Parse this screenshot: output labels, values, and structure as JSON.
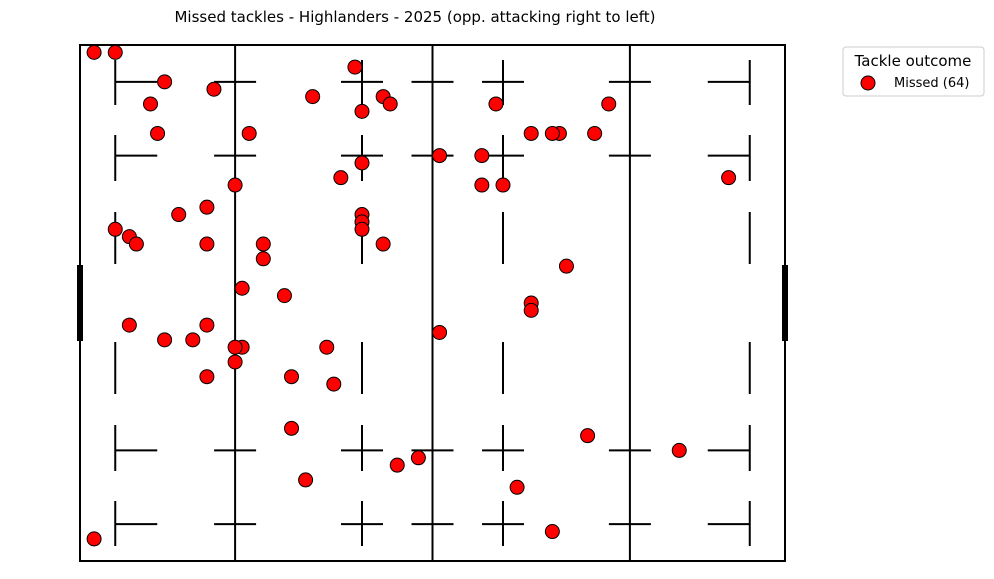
{
  "chart_data": {
    "type": "scatter",
    "title": "Missed tackles - Highlanders - 2025  (opp. attacking right to left)",
    "xlabel": "",
    "ylabel": "",
    "xlim": [
      0,
      100
    ],
    "ylim": [
      0,
      70
    ],
    "grid": false,
    "legend": {
      "title": "Tackle outcome",
      "placement": "top-right-outside",
      "entries": [
        {
          "label": "Missed (64)",
          "color": "#ff0000"
        }
      ]
    },
    "series": [
      {
        "name": "Missed (64)",
        "color": "#ff0000",
        "points": [
          [
            2,
            69
          ],
          [
            5,
            69
          ],
          [
            12,
            65
          ],
          [
            19,
            64
          ],
          [
            39,
            67
          ],
          [
            33,
            63
          ],
          [
            43,
            63
          ],
          [
            44,
            62
          ],
          [
            10,
            62
          ],
          [
            40,
            61
          ],
          [
            59,
            62
          ],
          [
            75,
            62
          ],
          [
            24,
            58
          ],
          [
            11,
            58
          ],
          [
            68,
            58
          ],
          [
            67,
            58
          ],
          [
            64,
            58
          ],
          [
            73,
            58
          ],
          [
            57,
            55
          ],
          [
            51,
            55
          ],
          [
            40,
            54
          ],
          [
            37,
            52
          ],
          [
            60,
            51
          ],
          [
            57,
            51
          ],
          [
            92,
            52
          ],
          [
            22,
            51
          ],
          [
            18,
            48
          ],
          [
            14,
            47
          ],
          [
            40,
            47
          ],
          [
            5,
            45
          ],
          [
            7,
            44
          ],
          [
            26,
            43
          ],
          [
            8,
            43
          ],
          [
            18,
            43
          ],
          [
            43,
            43
          ],
          [
            26,
            41
          ],
          [
            69,
            40
          ],
          [
            23,
            37
          ],
          [
            29,
            36
          ],
          [
            64,
            35
          ],
          [
            64,
            34
          ],
          [
            7,
            32
          ],
          [
            18,
            32
          ],
          [
            12,
            30
          ],
          [
            16,
            30
          ],
          [
            51,
            31
          ],
          [
            23,
            29
          ],
          [
            35,
            29
          ],
          [
            22,
            27
          ],
          [
            18,
            25
          ],
          [
            30,
            25
          ],
          [
            36,
            24
          ],
          [
            30,
            18
          ],
          [
            72,
            17
          ],
          [
            85,
            15
          ],
          [
            48,
            14
          ],
          [
            45,
            13
          ],
          [
            32,
            11
          ],
          [
            62,
            10
          ],
          [
            67,
            4
          ],
          [
            2,
            3
          ],
          [
            22,
            29
          ],
          [
            40,
            46
          ],
          [
            40,
            45
          ]
        ]
      }
    ],
    "pitch": {
      "solid_lines_x": [
        22,
        50,
        78
      ],
      "dashed_lines_x": [
        5,
        40,
        60,
        95
      ],
      "dash_rows_y": [
        5,
        15,
        55,
        65
      ]
    }
  }
}
